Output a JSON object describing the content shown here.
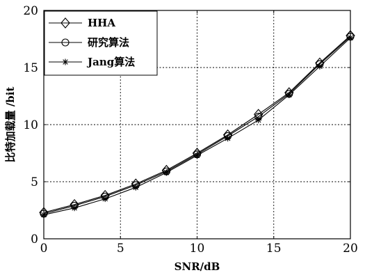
{
  "chart_data": {
    "type": "line",
    "title": "",
    "xlabel": "SNR/dB",
    "ylabel": "比特加载量 /bit",
    "xlim": [
      0,
      20
    ],
    "ylim": [
      0,
      20
    ],
    "xticks": [
      0,
      5,
      10,
      15,
      20
    ],
    "yticks": [
      0,
      5,
      10,
      15,
      20
    ],
    "grid": true,
    "legend_position": "top-left",
    "x": [
      0,
      2,
      4,
      6,
      8,
      10,
      12,
      14,
      16,
      18,
      20
    ],
    "series": [
      {
        "name": "HHA",
        "marker": "diamond",
        "values": [
          2.3,
          3.0,
          3.8,
          4.8,
          6.0,
          7.5,
          9.1,
          10.9,
          12.8,
          15.4,
          17.8
        ]
      },
      {
        "name": "研究算法",
        "marker": "circle",
        "values": [
          2.2,
          2.9,
          3.7,
          4.7,
          5.9,
          7.4,
          9.0,
          10.7,
          12.7,
          15.3,
          17.7
        ]
      },
      {
        "name": "Jang算法",
        "marker": "star",
        "values": [
          2.1,
          2.7,
          3.5,
          4.5,
          5.8,
          7.3,
          8.8,
          10.4,
          12.6,
          15.1,
          17.6
        ]
      }
    ]
  }
}
